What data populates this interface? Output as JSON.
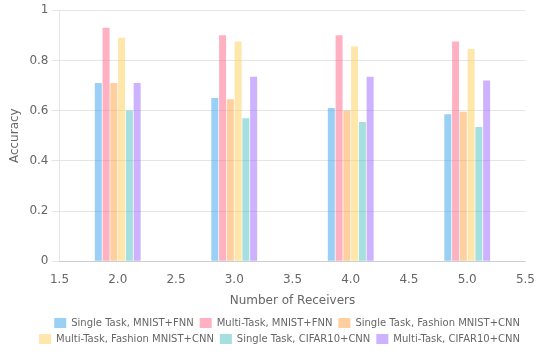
{
  "chart_data": {
    "type": "bar",
    "xlabel": "Number of Receivers",
    "ylabel": "Accuracy",
    "x": [
      2,
      3,
      4,
      5
    ],
    "xlim": [
      1.5,
      5.5
    ],
    "xticks": [
      1.5,
      {
        "value": 2,
        "label": "2.0"
      },
      2.5,
      {
        "value": 3,
        "label": "3.0"
      },
      3.5,
      {
        "value": 4,
        "label": "4.0"
      },
      4.5,
      {
        "value": 5,
        "label": "5.0"
      },
      5.5
    ],
    "ylim": [
      0,
      1
    ],
    "yticks": [
      0,
      0.2,
      0.4,
      0.6,
      0.8,
      1
    ],
    "grid": true,
    "legend": "lower right",
    "series": [
      {
        "name": "Single Task, MNIST+FNN",
        "values": [
          0.71,
          0.65,
          0.61,
          0.585
        ]
      },
      {
        "name": "Multi-Task, MNIST+FNN",
        "values": [
          0.93,
          0.9,
          0.9,
          0.875
        ]
      },
      {
        "name": "Single Task, Fashion MNIST+CNN",
        "values": [
          0.71,
          0.645,
          0.6,
          0.595
        ]
      },
      {
        "name": "Multi-Task, Fashion MNIST+CNN",
        "values": [
          0.89,
          0.875,
          0.855,
          0.845
        ]
      },
      {
        "name": "Single Task, CIFAR10+CNN",
        "values": [
          0.6,
          0.57,
          0.555,
          0.535
        ]
      },
      {
        "name": "Multi-Task, CIFAR10+CNN",
        "values": [
          0.71,
          0.735,
          0.735,
          0.72
        ]
      }
    ]
  }
}
